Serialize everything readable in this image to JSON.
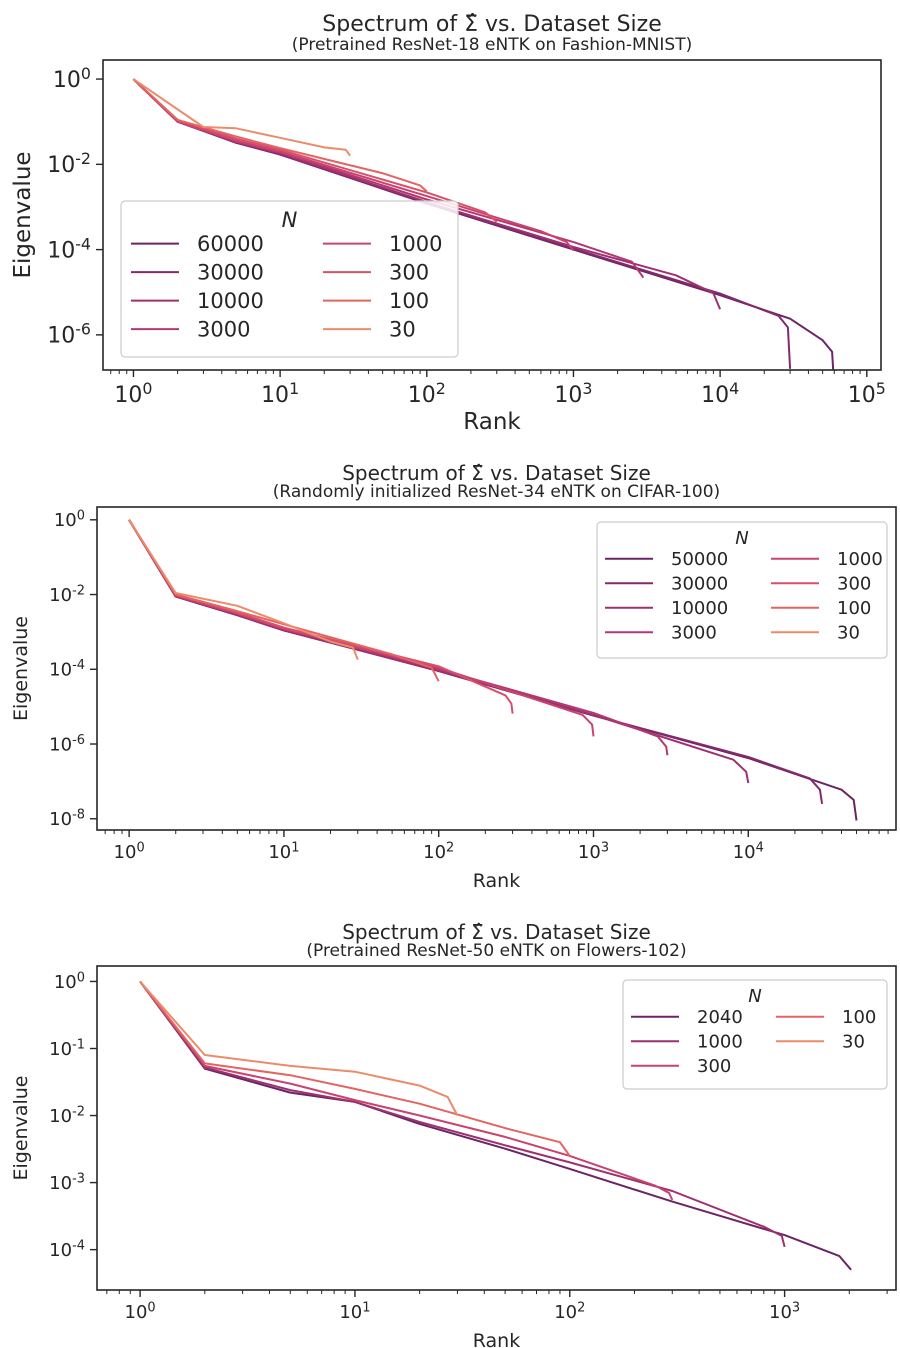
{
  "figure": {
    "colors": {
      "axis": "#262626",
      "legend_border": "#cccccc"
    }
  },
  "chart_data": [
    {
      "type": "line",
      "title": "Spectrum of Σ̂ vs. Dataset Size",
      "subtitle": "(Pretrained ResNet-18 eNTK on Fashion-MNIST)",
      "xlabel": "Rank",
      "ylabel": "Eigenvalue",
      "xscale": "log",
      "yscale": "log",
      "xlim": [
        0.62,
        125000
      ],
      "ylim": [
        1.5e-07,
        2.8
      ],
      "xticks": [
        1,
        10,
        100,
        1000,
        10000,
        100000
      ],
      "xtick_labels": [
        "10^0",
        "10^1",
        "10^2",
        "10^3",
        "10^4",
        "10^5"
      ],
      "yticks": [
        1,
        0.01,
        0.0001,
        1e-06
      ],
      "ytick_labels": [
        "10^0",
        "10^-2",
        "10^-4",
        "10^-6"
      ],
      "grid": false,
      "legend": {
        "title": "N",
        "placement": "center-left",
        "columns": 2
      },
      "series": [
        {
          "name": "60000",
          "color": "#6b2566",
          "points": [
            [
              1,
              1
            ],
            [
              2,
              0.1
            ],
            [
              5,
              0.032
            ],
            [
              10,
              0.017
            ],
            [
              100,
              0.0012
            ],
            [
              1000,
              0.0001
            ],
            [
              10000,
              8.5e-06
            ],
            [
              30000,
              2.4e-06
            ],
            [
              50000,
              7.5e-07
            ],
            [
              58000,
              4e-07
            ],
            [
              60000,
              6e-08
            ]
          ]
        },
        {
          "name": "30000",
          "color": "#832a6c",
          "points": [
            [
              1,
              1
            ],
            [
              2,
              0.1
            ],
            [
              5,
              0.033
            ],
            [
              10,
              0.017
            ],
            [
              100,
              0.00125
            ],
            [
              1000,
              0.000105
            ],
            [
              10000,
              9.3e-06
            ],
            [
              25000,
              2.8e-06
            ],
            [
              29000,
              1.5e-06
            ],
            [
              30000,
              1.6e-07
            ]
          ]
        },
        {
          "name": "10000",
          "color": "#9e3070",
          "points": [
            [
              1,
              1
            ],
            [
              2,
              0.1
            ],
            [
              5,
              0.033
            ],
            [
              10,
              0.018
            ],
            [
              100,
              0.0013
            ],
            [
              1000,
              0.000115
            ],
            [
              5000,
              2.5e-05
            ],
            [
              9000,
              9.5e-06
            ],
            [
              10000,
              4e-06
            ]
          ]
        },
        {
          "name": "3000",
          "color": "#b33870",
          "points": [
            [
              1,
              1
            ],
            [
              2,
              0.1
            ],
            [
              5,
              0.034
            ],
            [
              10,
              0.019
            ],
            [
              100,
              0.0015
            ],
            [
              1000,
              0.00015
            ],
            [
              2500,
              5.2e-05
            ],
            [
              3000,
              2.2e-05
            ]
          ]
        },
        {
          "name": "1000",
          "color": "#c9436d",
          "points": [
            [
              1,
              1
            ],
            [
              2,
              0.1
            ],
            [
              5,
              0.036
            ],
            [
              10,
              0.02
            ],
            [
              100,
              0.0018
            ],
            [
              600,
              0.00027
            ],
            [
              900,
              0.00015
            ],
            [
              1000,
              9.5e-05
            ]
          ]
        },
        {
          "name": "300",
          "color": "#d84f69",
          "points": [
            [
              1,
              1
            ],
            [
              2,
              0.11
            ],
            [
              5,
              0.04
            ],
            [
              10,
              0.022
            ],
            [
              100,
              0.0022
            ],
            [
              250,
              0.00075
            ],
            [
              300,
              0.00045
            ]
          ]
        },
        {
          "name": "100",
          "color": "#e36460",
          "points": [
            [
              1,
              1
            ],
            [
              2,
              0.11
            ],
            [
              5,
              0.045
            ],
            [
              10,
              0.024
            ],
            [
              50,
              0.0062
            ],
            [
              90,
              0.0032
            ],
            [
              100,
              0.0023
            ]
          ]
        },
        {
          "name": "30",
          "color": "#eb8b6b",
          "points": [
            [
              1,
              1
            ],
            [
              3,
              0.075
            ],
            [
              5,
              0.07
            ],
            [
              10,
              0.042
            ],
            [
              20,
              0.025
            ],
            [
              28,
              0.022
            ],
            [
              30,
              0.016
            ]
          ]
        }
      ]
    },
    {
      "type": "line",
      "title": "Spectrum of Σ̂ vs. Dataset Size",
      "subtitle": "(Randomly initialized ResNet-34 eNTK on CIFAR-100)",
      "xlabel": "Rank",
      "ylabel": "Eigenvalue",
      "xscale": "log",
      "yscale": "log",
      "xlim": [
        0.62,
        90000
      ],
      "ylim": [
        5e-09,
        2.2
      ],
      "xticks": [
        1,
        10,
        100,
        1000,
        10000
      ],
      "xtick_labels": [
        "10^0",
        "10^1",
        "10^2",
        "10^3",
        "10^4"
      ],
      "yticks": [
        1,
        0.01,
        0.0001,
        1e-06,
        1e-08
      ],
      "ytick_labels": [
        "10^0",
        "10^-2",
        "10^-4",
        "10^-6",
        "10^-8"
      ],
      "grid": false,
      "legend": {
        "title": "N",
        "placement": "top-right",
        "columns": 2
      },
      "series": [
        {
          "name": "50000",
          "color": "#6b2566",
          "points": [
            [
              1,
              1
            ],
            [
              2,
              0.0088
            ],
            [
              5,
              0.0028
            ],
            [
              10,
              0.0011
            ],
            [
              100,
              9e-05
            ],
            [
              1000,
              5.8e-06
            ],
            [
              10000,
              4.2e-07
            ],
            [
              40000,
              6e-08
            ],
            [
              48000,
              3.2e-08
            ],
            [
              50000,
              9e-09
            ]
          ]
        },
        {
          "name": "30000",
          "color": "#832a6c",
          "points": [
            [
              1,
              1
            ],
            [
              2,
              0.0088
            ],
            [
              5,
              0.0028
            ],
            [
              10,
              0.0011
            ],
            [
              100,
              9e-05
            ],
            [
              1000,
              5.8e-06
            ],
            [
              10000,
              4.5e-07
            ],
            [
              25000,
              1.2e-07
            ],
            [
              29000,
              6e-08
            ],
            [
              30000,
              2.5e-08
            ]
          ]
        },
        {
          "name": "10000",
          "color": "#9e3070",
          "points": [
            [
              1,
              1
            ],
            [
              2,
              0.009
            ],
            [
              5,
              0.0029
            ],
            [
              10,
              0.0011
            ],
            [
              100,
              9.2e-05
            ],
            [
              1000,
              6e-06
            ],
            [
              8000,
              3.8e-07
            ],
            [
              9700,
              1.8e-07
            ],
            [
              10000,
              9e-08
            ]
          ]
        },
        {
          "name": "3000",
          "color": "#b33870",
          "points": [
            [
              1,
              1
            ],
            [
              2,
              0.009
            ],
            [
              5,
              0.003
            ],
            [
              10,
              0.0012
            ],
            [
              100,
              0.0001
            ],
            [
              1000,
              6.8e-06
            ],
            [
              2600,
              1.6e-06
            ],
            [
              2950,
              8.5e-07
            ],
            [
              3000,
              5e-07
            ]
          ]
        },
        {
          "name": "1000",
          "color": "#c9436d",
          "points": [
            [
              1,
              1
            ],
            [
              2,
              0.0095
            ],
            [
              5,
              0.0031
            ],
            [
              10,
              0.0012
            ],
            [
              100,
              0.00011
            ],
            [
              850,
              6e-06
            ],
            [
              980,
              3.3e-06
            ],
            [
              1000,
              1.6e-06
            ]
          ]
        },
        {
          "name": "300",
          "color": "#d84f69",
          "points": [
            [
              1,
              1
            ],
            [
              2,
              0.01
            ],
            [
              5,
              0.0033
            ],
            [
              10,
              0.0013
            ],
            [
              100,
              0.00012
            ],
            [
              270,
              2e-05
            ],
            [
              295,
              1.2e-05
            ],
            [
              300,
              6.5e-06
            ]
          ]
        },
        {
          "name": "100",
          "color": "#e36460",
          "points": [
            [
              1,
              1
            ],
            [
              2,
              0.01
            ],
            [
              5,
              0.0036
            ],
            [
              10,
              0.0016
            ],
            [
              50,
              0.00025
            ],
            [
              90,
              0.00011
            ],
            [
              100,
              4.8e-05
            ]
          ]
        },
        {
          "name": "30",
          "color": "#eb8b6b",
          "points": [
            [
              1,
              1
            ],
            [
              2,
              0.011
            ],
            [
              5,
              0.005
            ],
            [
              10,
              0.0017
            ],
            [
              20,
              0.00055
            ],
            [
              28,
              0.00038
            ],
            [
              30,
              0.00018
            ]
          ]
        }
      ]
    },
    {
      "type": "line",
      "title": "Spectrum of Σ̂ vs. Dataset Size",
      "subtitle": "(Pretrained ResNet-50 eNTK on Flowers-102)",
      "xlabel": "Rank",
      "ylabel": "Eigenvalue",
      "xscale": "log",
      "yscale": "log",
      "xlim": [
        0.63,
        3300
      ],
      "ylim": [
        2.5e-05,
        1.7
      ],
      "xticks": [
        1,
        10,
        100,
        1000
      ],
      "xtick_labels": [
        "10^0",
        "10^1",
        "10^2",
        "10^3"
      ],
      "yticks": [
        1,
        0.1,
        0.01,
        0.001,
        0.0001
      ],
      "ytick_labels": [
        "10^0",
        "10^-1",
        "10^-2",
        "10^-3",
        "10^-4"
      ],
      "grid": false,
      "legend": {
        "title": "N",
        "placement": "top-right",
        "columns": 2
      },
      "series": [
        {
          "name": "2040",
          "color": "#6b2566",
          "points": [
            [
              1,
              1
            ],
            [
              2,
              0.05
            ],
            [
              5,
              0.022
            ],
            [
              10,
              0.016
            ],
            [
              20,
              0.0075
            ],
            [
              50,
              0.0032
            ],
            [
              100,
              0.0016
            ],
            [
              300,
              0.00052
            ],
            [
              1000,
              0.000165
            ],
            [
              1800,
              8e-05
            ],
            [
              2040,
              5e-05
            ]
          ]
        },
        {
          "name": "1000",
          "color": "#9e3070",
          "points": [
            [
              1,
              1
            ],
            [
              2,
              0.052
            ],
            [
              5,
              0.024
            ],
            [
              10,
              0.016
            ],
            [
              20,
              0.008
            ],
            [
              50,
              0.0036
            ],
            [
              100,
              0.002
            ],
            [
              300,
              0.00075
            ],
            [
              800,
              0.00022
            ],
            [
              970,
              0.00016
            ],
            [
              1000,
              0.00011
            ]
          ]
        },
        {
          "name": "300",
          "color": "#c9436d",
          "points": [
            [
              1,
              1
            ],
            [
              2,
              0.055
            ],
            [
              5,
              0.03
            ],
            [
              10,
              0.017
            ],
            [
              20,
              0.01
            ],
            [
              50,
              0.0048
            ],
            [
              100,
              0.0025
            ],
            [
              250,
              0.0009
            ],
            [
              290,
              0.0007
            ],
            [
              300,
              0.00055
            ]
          ]
        },
        {
          "name": "100",
          "color": "#e36460",
          "points": [
            [
              1,
              1
            ],
            [
              2,
              0.06
            ],
            [
              5,
              0.04
            ],
            [
              10,
              0.025
            ],
            [
              20,
              0.015
            ],
            [
              50,
              0.0065
            ],
            [
              90,
              0.004
            ],
            [
              100,
              0.0025
            ]
          ]
        },
        {
          "name": "30",
          "color": "#eb8b6b",
          "points": [
            [
              1,
              1
            ],
            [
              2,
              0.08
            ],
            [
              5,
              0.055
            ],
            [
              10,
              0.045
            ],
            [
              20,
              0.028
            ],
            [
              27,
              0.019
            ],
            [
              30,
              0.01
            ]
          ]
        }
      ]
    }
  ]
}
